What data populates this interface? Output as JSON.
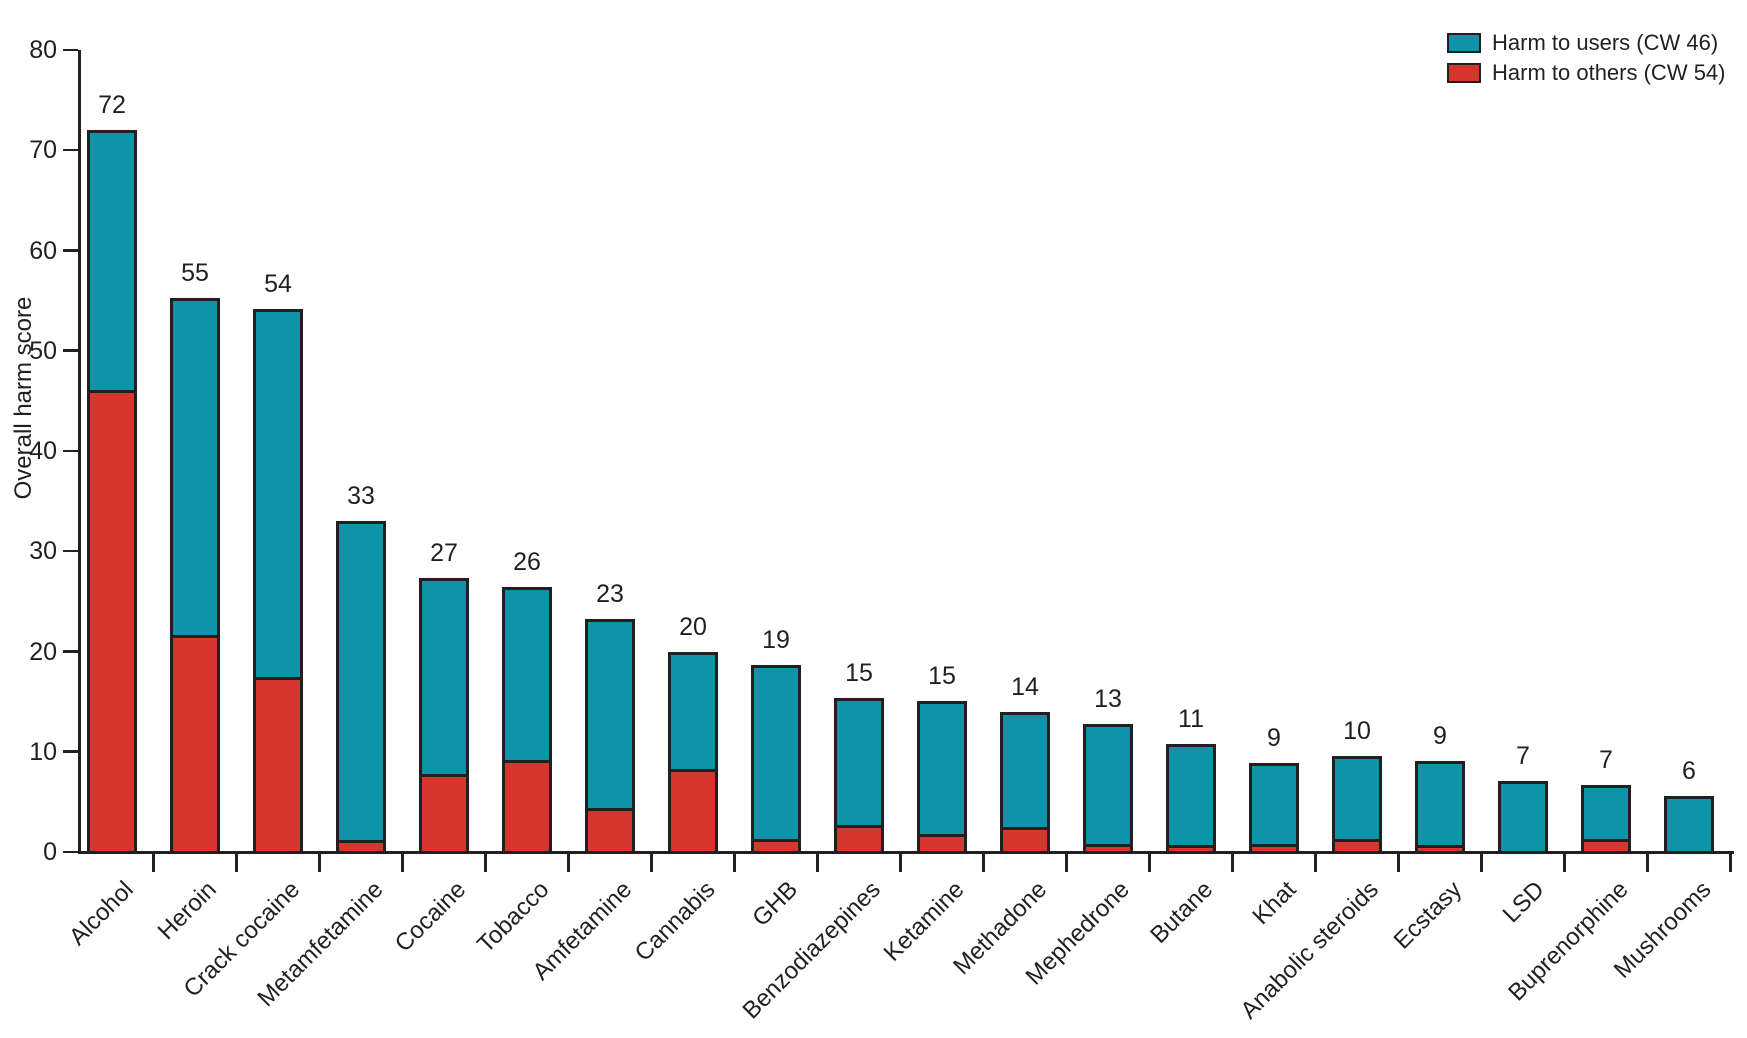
{
  "figure": {
    "y_axis_title": "Overall harm score",
    "ink_color": "#231f20",
    "background_color": "#ffffff"
  },
  "chart_data": {
    "type": "bar",
    "stacked": true,
    "title": "",
    "xlabel": "",
    "ylabel": "Overall harm score",
    "ylim": [
      0,
      80
    ],
    "ytick_step": 10,
    "ytick_labels": [
      "0",
      "10",
      "20",
      "30",
      "40",
      "50",
      "60",
      "70",
      "80"
    ],
    "grid": false,
    "legend_position": "top-right",
    "stack_bottom_series": "Harm to others (CW 54)",
    "categories": [
      "Alcohol",
      "Heroin",
      "Crack cocaine",
      "Metamfetamine",
      "Cocaine",
      "Tobacco",
      "Amfetamine",
      "Cannabis",
      "GHB",
      "Benzodiazepines",
      "Ketamine",
      "Methadone",
      "Mephedrone",
      "Butane",
      "Khat",
      "Anabolic steroids",
      "Ecstasy",
      "LSD",
      "Buprenorphine",
      "Mushrooms"
    ],
    "bar_total_labels": [
      "72",
      "55",
      "54",
      "33",
      "27",
      "26",
      "23",
      "20",
      "19",
      "15",
      "15",
      "14",
      "13",
      "11",
      "9",
      "10",
      "9",
      "7",
      "7",
      "6"
    ],
    "series": [
      {
        "name": "Harm to users (CW 46)",
        "color": "#0e94a8",
        "values": [
          26.0,
          33.8,
          36.8,
          31.9,
          19.6,
          17.3,
          18.9,
          11.8,
          17.5,
          12.8,
          13.4,
          11.6,
          12.1,
          10.2,
          8.2,
          8.4,
          8.5,
          7.1,
          5.5,
          5.6
        ]
      },
      {
        "name": "Harm to others (CW 54)",
        "color": "#d5372f",
        "values": [
          46.0,
          21.5,
          17.4,
          1.1,
          7.7,
          9.1,
          4.3,
          8.2,
          1.2,
          2.6,
          1.7,
          2.4,
          0.7,
          0.6,
          0.7,
          1.2,
          0.6,
          0.0,
          1.2,
          0.0
        ]
      }
    ]
  }
}
